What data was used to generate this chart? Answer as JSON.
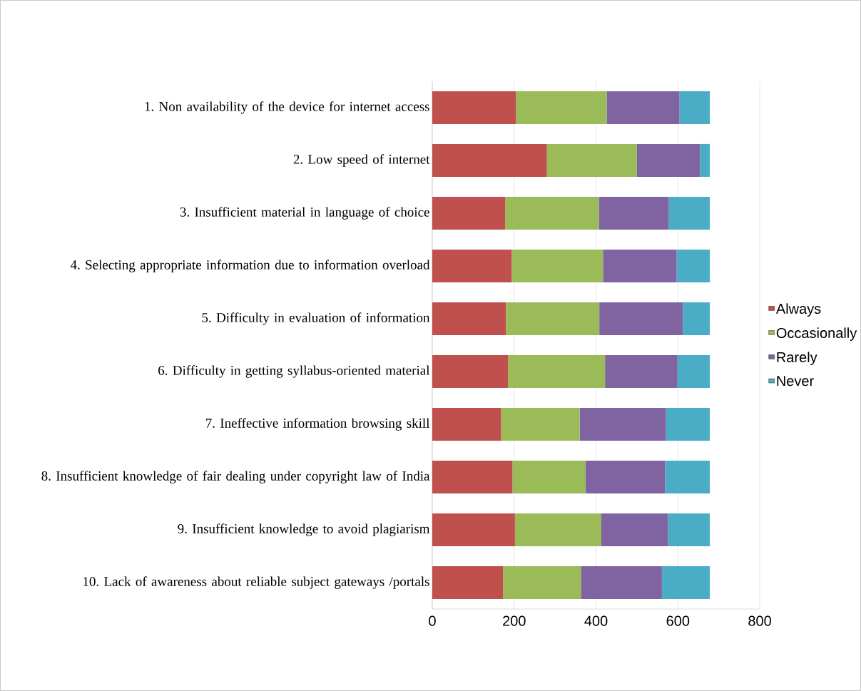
{
  "chart_data": {
    "type": "bar",
    "orientation": "horizontal",
    "stacked": true,
    "categories": [
      "1. Non availability of the device for internet access",
      "2. Low speed of internet",
      "3. Insufficient material in language of choice",
      "4. Selecting appropriate information due to information overload",
      "5. Difficulty in evaluation of information",
      "6. Difficulty in getting syllabus-oriented material",
      "7. Ineffective information browsing skill",
      "8. Insufficient knowledge of fair dealing under copyright law of India",
      "9. Insufficient knowledge to avoid plagiarism",
      "10. Lack of awareness about reliable subject gateways /portals"
    ],
    "series": [
      {
        "name": "Always",
        "color": "#c0504d",
        "values": [
          204,
          280,
          178,
          194,
          180,
          185,
          168,
          196,
          202,
          173
        ]
      },
      {
        "name": "Occasionally",
        "color": "#9bbb59",
        "values": [
          222,
          220,
          229,
          223,
          228,
          237,
          192,
          178,
          211,
          190
        ]
      },
      {
        "name": "Rarely",
        "color": "#8064a2",
        "values": [
          178,
          154,
          171,
          180,
          204,
          177,
          211,
          195,
          163,
          198
        ]
      },
      {
        "name": "Never",
        "color": "#4bacc6",
        "values": [
          74,
          24,
          100,
          81,
          66,
          79,
          107,
          109,
          102,
          117
        ]
      }
    ],
    "xlim": [
      0,
      800
    ],
    "xticks": [
      0,
      200,
      400,
      600,
      800
    ],
    "grid": "x",
    "legend": "right"
  }
}
